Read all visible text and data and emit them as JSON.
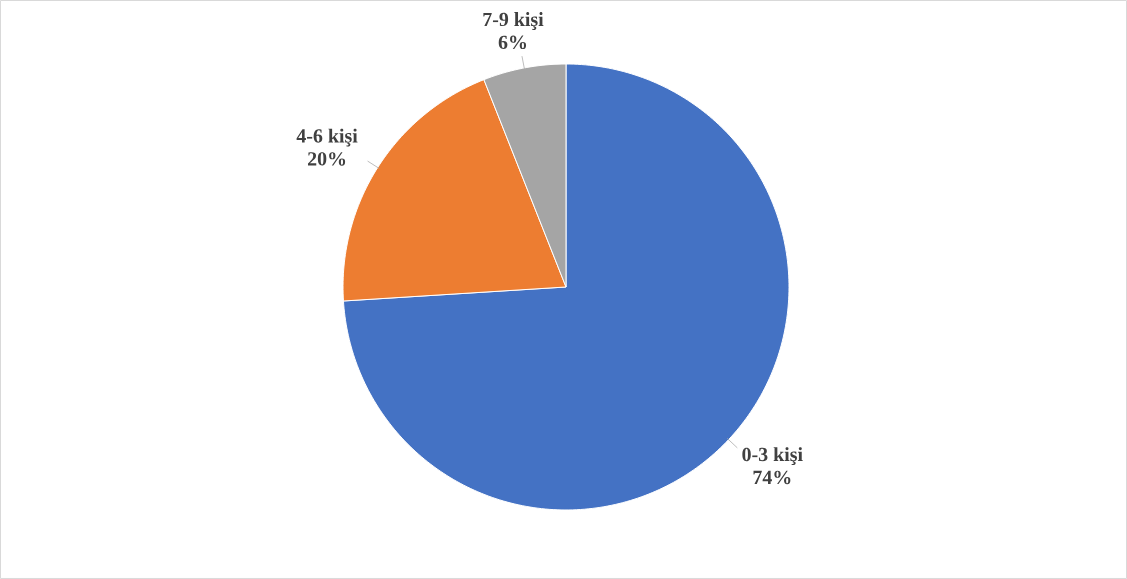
{
  "chart_data": {
    "type": "pie",
    "categories": [
      "0-3 kişi",
      "4-6 kişi",
      "7-9 kişi"
    ],
    "values": [
      74,
      20,
      6
    ],
    "colors": [
      "#4472c4",
      "#ed7d31",
      "#a5a5a5"
    ],
    "value_labels": [
      "74%",
      "20%",
      "6%"
    ]
  }
}
